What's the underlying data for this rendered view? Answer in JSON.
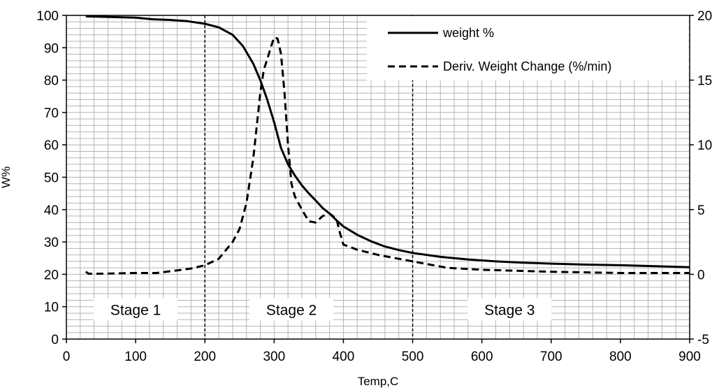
{
  "chart_data": {
    "type": "line",
    "xlabel": "Temp,C",
    "ylabel": "W%",
    "xlim": [
      0,
      900
    ],
    "ylim": [
      0,
      100
    ],
    "y2lim": [
      -5,
      20
    ],
    "grid": true,
    "legend_placement": "top-right",
    "x_ticks": [
      "0",
      "100",
      "200",
      "300",
      "400",
      "500",
      "600",
      "700",
      "800",
      "900"
    ],
    "y_ticks": [
      "0",
      "10",
      "20",
      "30",
      "40",
      "50",
      "60",
      "70",
      "80",
      "90",
      "100"
    ],
    "y2_ticks": [
      "-5",
      "0",
      "5",
      "10",
      "15",
      "20"
    ],
    "series": [
      {
        "name": "weight %",
        "axis": "left",
        "style": "solid",
        "x": [
          28,
          100,
          125,
          150,
          175,
          200,
          220,
          240,
          255,
          270,
          280,
          290,
          300,
          310,
          320,
          330,
          340,
          350,
          360,
          370,
          380,
          390,
          400,
          420,
          440,
          460,
          480,
          500,
          540,
          580,
          620,
          660,
          700,
          750,
          800,
          850,
          900
        ],
        "y": [
          99.7,
          99.3,
          98.8,
          98.6,
          98.2,
          97.4,
          96.3,
          94,
          90.5,
          85,
          80,
          74,
          67,
          59,
          54,
          50.5,
          47.5,
          45,
          42.8,
          40.5,
          38.8,
          36.7,
          34.8,
          32.2,
          30.2,
          28.6,
          27.5,
          26.6,
          25.4,
          24.6,
          24,
          23.6,
          23.3,
          23,
          22.8,
          22.5,
          22.2
        ]
      },
      {
        "name": "Deriv. Weight Change (%/min)",
        "axis": "right",
        "style": "dashed",
        "x": [
          28,
          32,
          50,
          100,
          130,
          160,
          180,
          200,
          220,
          240,
          250,
          260,
          270,
          280,
          285,
          290,
          295,
          300,
          305,
          310,
          315,
          320,
          325,
          330,
          340,
          350,
          360,
          370,
          380,
          390,
          395,
          400,
          420,
          450,
          500,
          550,
          600,
          700,
          800,
          900
        ],
        "y": [
          0.2,
          0.05,
          0.05,
          0.1,
          0.1,
          0.3,
          0.45,
          0.7,
          1.2,
          2.5,
          3.5,
          5.5,
          9,
          14,
          15.8,
          16.6,
          17.5,
          18.3,
          18.2,
          17,
          14,
          10,
          7,
          6,
          5,
          4.1,
          4,
          4.5,
          4.7,
          4.3,
          3.2,
          2.3,
          1.9,
          1.5,
          1.0,
          0.5,
          0.35,
          0.2,
          0.1,
          0.1
        ]
      }
    ],
    "annotations": [
      {
        "text": "Stage 1",
        "x": 100,
        "y": 9
      },
      {
        "text": "Stage 2",
        "x": 325,
        "y": 9
      },
      {
        "text": "Stage 3",
        "x": 640,
        "y": 9
      }
    ],
    "stage_boundaries": [
      200,
      500
    ]
  }
}
